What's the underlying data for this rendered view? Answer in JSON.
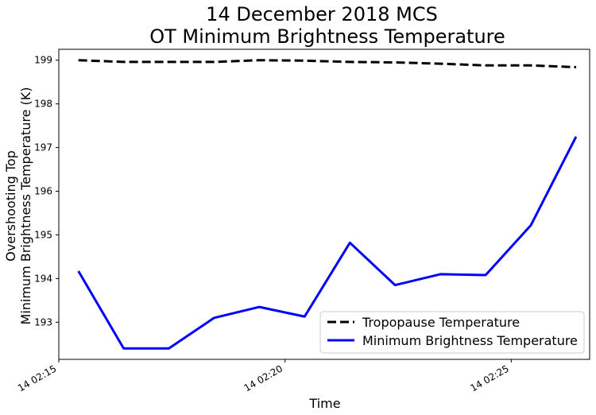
{
  "chart_data": {
    "type": "line",
    "title": [
      "14 December 2018 MCS",
      "OT Minimum Brightness Temperature"
    ],
    "xlabel": "Time",
    "ylabel": [
      "Overshooting Top",
      "Minimum Brightness Temperature (K)"
    ],
    "x": [
      "14 02:15:26",
      "14 02:16:26",
      "14 02:17:26",
      "14 02:18:26",
      "14 02:19:26",
      "14 02:20:26",
      "14 02:21:26",
      "14 02:22:26",
      "14 02:23:26",
      "14 02:24:26",
      "14 02:25:26",
      "14 02:26:26"
    ],
    "xlim": [
      "14 02:15:00",
      "14 02:26:44"
    ],
    "xticks": [
      "14 02:15",
      "14 02:20",
      "14 02:25"
    ],
    "ylim": [
      192.15,
      199.25
    ],
    "yticks": [
      "193",
      "194",
      "195",
      "196",
      "197",
      "198",
      "199"
    ],
    "grid": false,
    "legend_position": "lower-right",
    "series": [
      {
        "name": "Tropopause Temperature",
        "style": "dashed",
        "color": "#000000",
        "values": [
          199.0,
          198.96,
          198.96,
          198.96,
          199.0,
          198.99,
          198.96,
          198.95,
          198.92,
          198.88,
          198.88,
          198.84
        ]
      },
      {
        "name": "Minimum Brightness Temperature",
        "style": "solid",
        "color": "#0000ff",
        "values": [
          194.17,
          192.4,
          192.4,
          193.1,
          193.35,
          193.13,
          194.82,
          193.85,
          194.1,
          194.08,
          195.22,
          197.25
        ]
      }
    ]
  }
}
